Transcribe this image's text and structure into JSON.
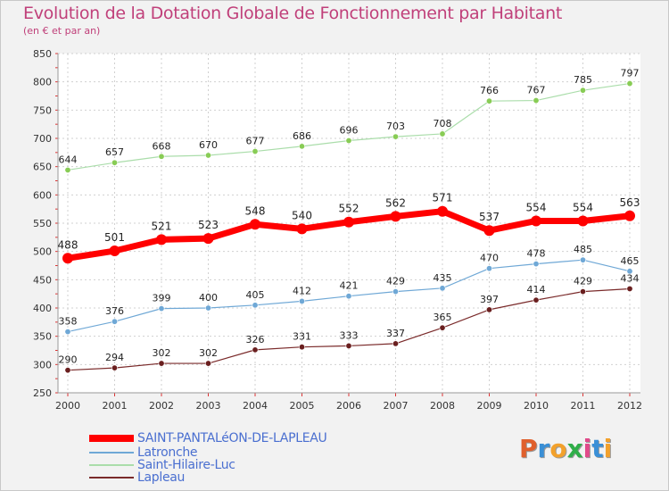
{
  "title": "Evolution de la Dotation Globale de Fonctionnement par Habitant",
  "subtitle": "(en € et par an)",
  "logo": {
    "letters": [
      "P",
      "r",
      "o",
      "x",
      "i",
      "t",
      "i"
    ],
    "colors": [
      "#e0602c",
      "#3a8fd6",
      "#f2a12c",
      "#2fae49",
      "#e14a8a",
      "#3a8fd6",
      "#f2a12c"
    ]
  },
  "chart_data": {
    "type": "line",
    "title": "Evolution de la Dotation Globale de Fonctionnement par Habitant",
    "subtitle": "(en € et par an)",
    "xlabel": "",
    "ylabel": "",
    "ylim": [
      250,
      850
    ],
    "yticks": [
      250,
      300,
      350,
      400,
      450,
      500,
      550,
      600,
      650,
      700,
      750,
      800,
      850
    ],
    "categories": [
      "2000",
      "2001",
      "2002",
      "2003",
      "2004",
      "2005",
      "2006",
      "2007",
      "2008",
      "2009",
      "2010",
      "2011",
      "2012"
    ],
    "grid": true,
    "legend_position": "bottom-left",
    "series": [
      {
        "name": "SAINT-PANTALéON-DE-LAPLEAU",
        "color": "#ff0000",
        "values": [
          488,
          501,
          521,
          523,
          548,
          540,
          552,
          562,
          571,
          537,
          554,
          554,
          563
        ]
      },
      {
        "name": "Latronche",
        "color": "#6fa8d6",
        "values": [
          358,
          376,
          399,
          400,
          405,
          412,
          421,
          429,
          435,
          470,
          478,
          485,
          465
        ]
      },
      {
        "name": "Saint-Hilaire-Luc",
        "color": "#99dd77",
        "values": [
          644,
          657,
          668,
          670,
          677,
          686,
          696,
          703,
          708,
          766,
          767,
          785,
          797
        ]
      },
      {
        "name": "Lapleau",
        "color": "#7a2a2a",
        "values": [
          290,
          294,
          302,
          302,
          326,
          331,
          333,
          337,
          365,
          397,
          414,
          429,
          434
        ]
      }
    ]
  }
}
